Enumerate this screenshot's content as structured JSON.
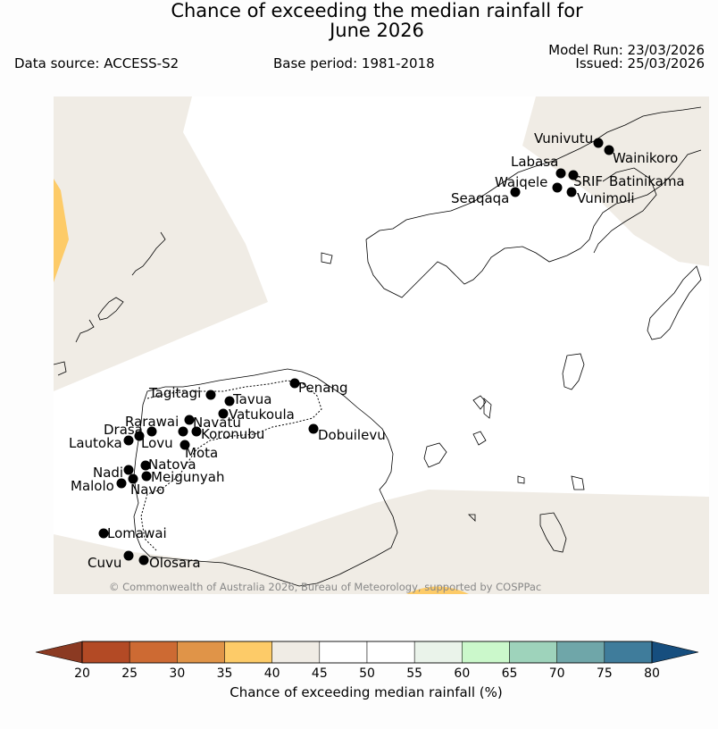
{
  "title": {
    "line1": "Chance of exceeding the median rainfall for",
    "line2": "June 2026"
  },
  "meta": {
    "data_source": "Data source: ACCESS-S2",
    "base_period": "Base period: 1981-2018",
    "model_run": "Model Run: 23/03/2026",
    "issued": "Issued: 25/03/2026"
  },
  "copyright": "© Commonwealth of Australia 2026, Bureau of Meteorology, supported by COSPPac",
  "colorbar": {
    "label": "Chance of exceeding median rainfall (%)",
    "ticks": [
      "20",
      "25",
      "30",
      "35",
      "40",
      "45",
      "50",
      "55",
      "60",
      "65",
      "70",
      "75",
      "80"
    ],
    "under_color": "#8b3a22",
    "over_color": "#164e7e",
    "colors": [
      "#b34a25",
      "#cd6a33",
      "#e09448",
      "#fdcb68",
      "#f0ece5",
      "#ffffff",
      "#ffffff",
      "#eaf3ea",
      "#cbf8cb",
      "#9ed3bb",
      "#6fa6a9",
      "#3f7c9b"
    ]
  },
  "map": {
    "sea_color": "#ffffff",
    "near_median_color": "#f0ece5",
    "dry_color": "#fdcb68"
  },
  "stations": [
    {
      "name": "Vunivutu"
    },
    {
      "name": "Wainikoro"
    },
    {
      "name": "Labasa"
    },
    {
      "name": "Waiqele"
    },
    {
      "name": "SRIF"
    },
    {
      "name": "Batinikama"
    },
    {
      "name": "Seaqaqa"
    },
    {
      "name": "Vunimoli"
    },
    {
      "name": "Penang"
    },
    {
      "name": "Tagitagi"
    },
    {
      "name": "Tavua"
    },
    {
      "name": "Vatukoula"
    },
    {
      "name": "Rarawai"
    },
    {
      "name": "Navatu"
    },
    {
      "name": "Drasa"
    },
    {
      "name": "Koronubu"
    },
    {
      "name": "Lautoka"
    },
    {
      "name": "Lovu"
    },
    {
      "name": "Mota"
    },
    {
      "name": "Dobuilevu"
    },
    {
      "name": "Natova"
    },
    {
      "name": "Nadi"
    },
    {
      "name": "Meigunyah"
    },
    {
      "name": "Malolo"
    },
    {
      "name": "Navo"
    },
    {
      "name": "Lomawai"
    },
    {
      "name": "Cuvu"
    },
    {
      "name": "Olosara"
    }
  ]
}
